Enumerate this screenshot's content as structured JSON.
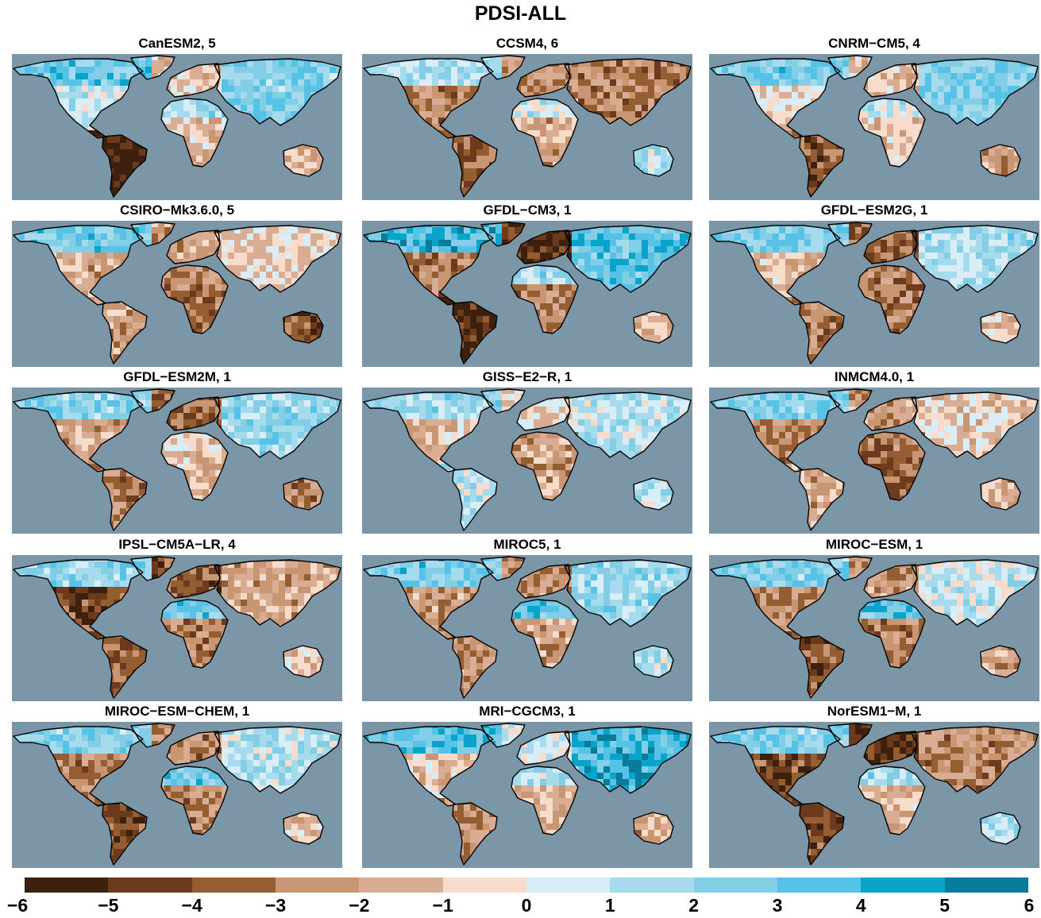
{
  "title": "PDSI-ALL",
  "ocean_color": "#7b97a7",
  "panels": [
    {
      "label": "CanESM2, 5",
      "seed": 11,
      "regions": {
        "na": 0.6,
        "sa": -5.5,
        "eu": -0.8,
        "as": 2.4,
        "af": -1.0,
        "sah": 1.8,
        "au": -1.5,
        "arc": 3.0
      }
    },
    {
      "label": "CCSM4, 6",
      "seed": 23,
      "regions": {
        "na": -2.8,
        "sa": -3.5,
        "eu": -2.5,
        "as": -2.8,
        "af": -1.8,
        "sah": 0.8,
        "au": 1.2,
        "arc": 1.5
      }
    },
    {
      "label": "CNRM−CM5, 4",
      "seed": 37,
      "regions": {
        "na": -0.5,
        "sa": -4.0,
        "eu": -1.2,
        "as": 2.5,
        "af": -1.3,
        "sah": 0.7,
        "au": -2.0,
        "arc": 2.6
      }
    },
    {
      "label": "CSIRO−Mk3.6.0, 5",
      "seed": 41,
      "regions": {
        "na": -1.6,
        "sa": -2.2,
        "eu": -1.8,
        "as": -0.6,
        "af": -3.0,
        "sah": -2.5,
        "au": -3.8,
        "arc": 2.6
      }
    },
    {
      "label": "GFDL−CM3, 1",
      "seed": 53,
      "regions": {
        "na": -2.8,
        "sa": -5.0,
        "eu": -5.0,
        "as": 3.2,
        "af": -2.6,
        "sah": 1.6,
        "au": -1.5,
        "arc": 3.8
      }
    },
    {
      "label": "GFDL−ESM2G, 1",
      "seed": 67,
      "regions": {
        "na": -1.4,
        "sa": -3.0,
        "eu": -3.5,
        "as": 1.6,
        "af": -3.3,
        "sah": -2.8,
        "au": -1.3,
        "arc": 2.5
      }
    },
    {
      "label": "GFDL−ESM2M, 1",
      "seed": 71,
      "regions": {
        "na": -1.8,
        "sa": -2.8,
        "eu": -3.5,
        "as": 2.0,
        "af": -1.4,
        "sah": -0.6,
        "au": -2.6,
        "arc": 2.2
      }
    },
    {
      "label": "GISS−E2−R, 1",
      "seed": 83,
      "regions": {
        "na": -1.3,
        "sa": 1.0,
        "eu": -0.5,
        "as": 1.2,
        "af": -2.0,
        "sah": -2.0,
        "au": 0.8,
        "arc": 1.8
      }
    },
    {
      "label": "INMCM4.0, 1",
      "seed": 97,
      "regions": {
        "na": -2.6,
        "sa": -2.0,
        "eu": -2.2,
        "as": -0.8,
        "af": -3.6,
        "sah": -3.2,
        "au": -1.6,
        "arc": 2.4
      }
    },
    {
      "label": "IPSL−CM5A−LR, 4",
      "seed": 101,
      "regions": {
        "na": -4.2,
        "sa": -3.5,
        "eu": -3.8,
        "as": -1.8,
        "af": -3.0,
        "sah": 3.0,
        "au": -1.2,
        "arc": 2.0
      }
    },
    {
      "label": "MIROC5, 1",
      "seed": 113,
      "regions": {
        "na": -2.4,
        "sa": -2.4,
        "eu": -2.4,
        "as": 1.8,
        "af": -2.2,
        "sah": 3.2,
        "au": 1.2,
        "arc": 2.6
      }
    },
    {
      "label": "MIROC−ESM, 1",
      "seed": 127,
      "regions": {
        "na": -2.6,
        "sa": -3.8,
        "eu": -2.4,
        "as": 0.8,
        "af": -3.0,
        "sah": 3.0,
        "au": -2.0,
        "arc": 2.4
      }
    },
    {
      "label": "MIROC−ESM−CHEM, 1",
      "seed": 131,
      "regions": {
        "na": -3.0,
        "sa": -4.0,
        "eu": -2.6,
        "as": 1.2,
        "af": -2.6,
        "sah": 3.0,
        "au": -1.4,
        "arc": 2.4
      }
    },
    {
      "label": "MRI−CGCM3, 1",
      "seed": 149,
      "regions": {
        "na": -1.2,
        "sa": -2.4,
        "eu": 0.5,
        "as": 4.0,
        "af": -1.4,
        "sah": 1.2,
        "au": -1.6,
        "arc": 3.4
      }
    },
    {
      "label": "NorESM1−M, 1",
      "seed": 151,
      "regions": {
        "na": -4.2,
        "sa": -4.2,
        "eu": -5.0,
        "as": -2.6,
        "af": -1.4,
        "sah": 1.8,
        "au": 1.6,
        "arc": 2.4
      }
    }
  ],
  "colorbar": {
    "colors": [
      "#3e200f",
      "#6c3a1c",
      "#955d32",
      "#c99674",
      "#d9ad94",
      "#f7dccb",
      "#d8edf6",
      "#a5dbec",
      "#82cee7",
      "#55c2e6",
      "#08a4c9",
      "#0a7c9b"
    ],
    "tick_labels": [
      "−6",
      "−5",
      "−4",
      "−3",
      "−2",
      "−1",
      "0",
      "1",
      "2",
      "3",
      "4",
      "5",
      "6"
    ]
  }
}
